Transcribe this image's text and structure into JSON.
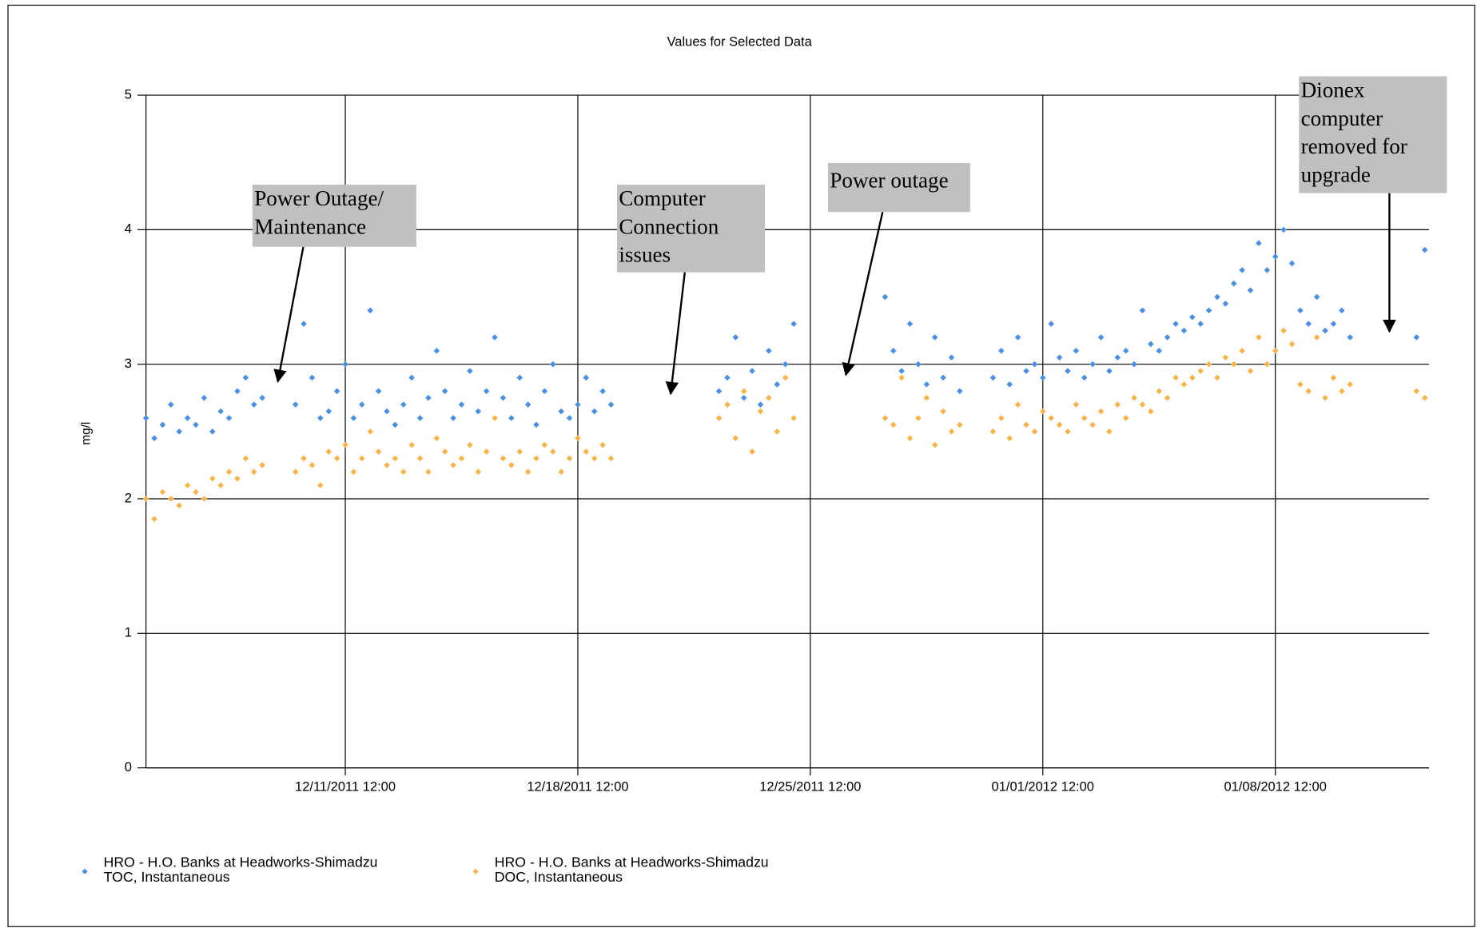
{
  "chart_data": {
    "type": "scatter",
    "title": "Values for Selected Data",
    "ylabel": "mg/l",
    "xlim": [
      "12/05/2011 12:00",
      "01/13/2012 03:00"
    ],
    "xticks": [
      "12/11/2011 12:00",
      "12/18/2011 12:00",
      "12/25/2011 12:00",
      "01/01/2012 12:00",
      "01/08/2012 12:00"
    ],
    "ylim": [
      0,
      5
    ],
    "yticks": [
      0,
      1,
      2,
      3,
      4,
      5
    ],
    "grid": true,
    "legend": "bottom",
    "annotations": [
      "Power Outage/\nMaintenance",
      "Computer\nConnection\nissues",
      "Power outage",
      "Dionex\ncomputer\nremoved for\nupgrade"
    ],
    "x": [
      "12/05/2011 12:00",
      "12/05/2011 18:00",
      "12/06/2011 00:00",
      "12/06/2011 06:00",
      "12/06/2011 12:00",
      "12/06/2011 18:00",
      "12/07/2011 00:00",
      "12/07/2011 06:00",
      "12/07/2011 12:00",
      "12/07/2011 18:00",
      "12/08/2011 00:00",
      "12/08/2011 06:00",
      "12/08/2011 12:00",
      "12/08/2011 18:00",
      "12/09/2011 00:00",
      "12/10/2011 00:00",
      "12/10/2011 06:00",
      "12/10/2011 12:00",
      "12/10/2011 18:00",
      "12/11/2011 00:00",
      "12/11/2011 06:00",
      "12/11/2011 12:00",
      "12/11/2011 18:00",
      "12/12/2011 00:00",
      "12/12/2011 06:00",
      "12/12/2011 12:00",
      "12/12/2011 18:00",
      "12/13/2011 00:00",
      "12/13/2011 06:00",
      "12/13/2011 12:00",
      "12/13/2011 18:00",
      "12/14/2011 00:00",
      "12/14/2011 06:00",
      "12/14/2011 12:00",
      "12/14/2011 18:00",
      "12/15/2011 00:00",
      "12/15/2011 06:00",
      "12/15/2011 12:00",
      "12/15/2011 18:00",
      "12/16/2011 00:00",
      "12/16/2011 06:00",
      "12/16/2011 12:00",
      "12/16/2011 18:00",
      "12/17/2011 00:00",
      "12/17/2011 06:00",
      "12/17/2011 12:00",
      "12/17/2011 18:00",
      "12/18/2011 00:00",
      "12/18/2011 06:00",
      "12/18/2011 12:00",
      "12/18/2011 18:00",
      "12/19/2011 00:00",
      "12/19/2011 06:00",
      "12/19/2011 12:00",
      "12/22/2011 18:00",
      "12/23/2011 00:00",
      "12/23/2011 06:00",
      "12/23/2011 12:00",
      "12/23/2011 18:00",
      "12/24/2011 00:00",
      "12/24/2011 06:00",
      "12/24/2011 12:00",
      "12/24/2011 18:00",
      "12/25/2011 00:00",
      "12/27/2011 18:00",
      "12/28/2011 00:00",
      "12/28/2011 06:00",
      "12/28/2011 12:00",
      "12/28/2011 18:00",
      "12/29/2011 00:00",
      "12/29/2011 06:00",
      "12/29/2011 12:00",
      "12/29/2011 18:00",
      "12/30/2011 00:00",
      "12/31/2011 00:00",
      "12/31/2011 06:00",
      "12/31/2011 12:00",
      "12/31/2011 18:00",
      "01/01/2012 00:00",
      "01/01/2012 06:00",
      "01/01/2012 12:00",
      "01/01/2012 18:00",
      "01/02/2012 00:00",
      "01/02/2012 06:00",
      "01/02/2012 12:00",
      "01/02/2012 18:00",
      "01/03/2012 00:00",
      "01/03/2012 06:00",
      "01/03/2012 12:00",
      "01/03/2012 18:00",
      "01/04/2012 00:00",
      "01/04/2012 06:00",
      "01/04/2012 12:00",
      "01/04/2012 18:00",
      "01/05/2012 00:00",
      "01/05/2012 06:00",
      "01/05/2012 12:00",
      "01/05/2012 18:00",
      "01/06/2012 00:00",
      "01/06/2012 06:00",
      "01/06/2012 12:00",
      "01/06/2012 18:00",
      "01/07/2012 00:00",
      "01/07/2012 06:00",
      "01/07/2012 12:00",
      "01/07/2012 18:00",
      "01/08/2012 00:00",
      "01/08/2012 06:00",
      "01/08/2012 12:00",
      "01/08/2012 18:00",
      "01/09/2012 00:00",
      "01/09/2012 06:00",
      "01/09/2012 12:00",
      "01/09/2012 18:00",
      "01/10/2012 00:00",
      "01/10/2012 06:00",
      "01/10/2012 12:00",
      "01/10/2012 18:00",
      "01/12/2012 18:00",
      "01/13/2012 00:00"
    ],
    "series": [
      {
        "name": "HRO - H.O. Banks at Headworks-Shimadzu\nTOC, Instantaneous",
        "color": "#4a8fe3",
        "values": [
          2.6,
          2.45,
          2.55,
          2.7,
          2.5,
          2.6,
          2.55,
          2.75,
          2.5,
          2.65,
          2.6,
          2.8,
          2.9,
          2.7,
          2.75,
          2.7,
          3.3,
          2.9,
          2.6,
          2.65,
          2.8,
          3.0,
          2.6,
          2.7,
          3.4,
          2.8,
          2.65,
          2.55,
          2.7,
          2.9,
          2.6,
          2.75,
          3.1,
          2.8,
          2.6,
          2.7,
          2.95,
          2.65,
          2.8,
          3.2,
          2.75,
          2.6,
          2.9,
          2.7,
          2.55,
          2.8,
          3.0,
          2.65,
          2.6,
          2.7,
          2.9,
          2.65,
          2.8,
          2.7,
          2.8,
          2.9,
          3.2,
          2.75,
          2.95,
          2.7,
          3.1,
          2.85,
          3.0,
          3.3,
          3.5,
          3.1,
          2.95,
          3.3,
          3.0,
          2.85,
          3.2,
          2.9,
          3.05,
          2.8,
          2.9,
          3.1,
          2.85,
          3.2,
          2.95,
          3.0,
          2.9,
          3.3,
          3.05,
          2.95,
          3.1,
          2.9,
          3.0,
          3.2,
          2.95,
          3.05,
          3.1,
          3.0,
          3.4,
          3.15,
          3.1,
          3.2,
          3.3,
          3.25,
          3.35,
          3.3,
          3.4,
          3.5,
          3.45,
          3.6,
          3.7,
          3.55,
          3.9,
          3.7,
          3.8,
          4.0,
          3.75,
          3.4,
          3.3,
          3.5,
          3.25,
          3.3,
          3.4,
          3.2,
          3.2,
          3.85
        ]
      },
      {
        "name": "HRO - H.O. Banks at Headworks-Shimadzu\nDOC, Instantaneous",
        "color": "#f8b449",
        "values": [
          2.0,
          1.85,
          2.05,
          2.0,
          1.95,
          2.1,
          2.05,
          2.0,
          2.15,
          2.1,
          2.2,
          2.15,
          2.3,
          2.2,
          2.25,
          2.2,
          2.3,
          2.25,
          2.1,
          2.35,
          2.3,
          2.4,
          2.2,
          2.3,
          2.5,
          2.35,
          2.25,
          2.3,
          2.2,
          2.4,
          2.3,
          2.2,
          2.45,
          2.35,
          2.25,
          2.3,
          2.4,
          2.2,
          2.35,
          2.6,
          2.3,
          2.25,
          2.35,
          2.2,
          2.3,
          2.4,
          2.35,
          2.2,
          2.3,
          2.45,
          2.35,
          2.3,
          2.4,
          2.3,
          2.6,
          2.7,
          2.45,
          2.8,
          2.35,
          2.65,
          2.75,
          2.5,
          2.9,
          2.6,
          2.6,
          2.55,
          2.9,
          2.45,
          2.6,
          2.75,
          2.4,
          2.65,
          2.5,
          2.55,
          2.5,
          2.6,
          2.45,
          2.7,
          2.55,
          2.5,
          2.65,
          2.6,
          2.55,
          2.5,
          2.7,
          2.6,
          2.55,
          2.65,
          2.5,
          2.7,
          2.6,
          2.75,
          2.7,
          2.65,
          2.8,
          2.75,
          2.9,
          2.85,
          2.9,
          2.95,
          3.0,
          2.9,
          3.05,
          3.0,
          3.1,
          2.95,
          3.2,
          3.0,
          3.1,
          3.25,
          3.15,
          2.85,
          2.8,
          3.2,
          2.75,
          2.9,
          2.8,
          2.85,
          2.8,
          2.75
        ]
      }
    ]
  }
}
